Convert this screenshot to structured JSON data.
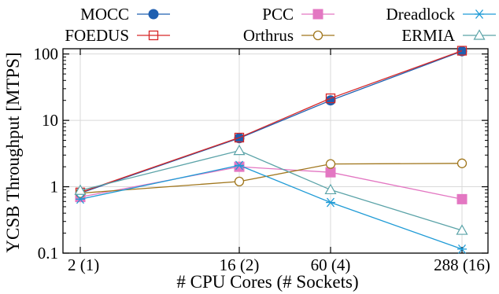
{
  "chart_data": {
    "type": "line",
    "xlabel": "# CPU Cores (# Sockets)",
    "ylabel": "YCSB Throughput [MTPS]",
    "yscale": "log",
    "ylim": [
      0.1,
      120
    ],
    "categories": [
      "2 (1)",
      "16 (2)",
      "60 (4)",
      "288 (16)"
    ],
    "x": [
      2,
      16,
      60,
      288
    ],
    "y_ticks": [
      "0.1",
      "1",
      "10",
      "100"
    ],
    "legend_position": "top",
    "series": [
      {
        "name": "MOCC",
        "color": "#1f5fb0",
        "marker": "filled-circle",
        "values": [
          0.8,
          5.4,
          20,
          110
        ]
      },
      {
        "name": "FOEDUS",
        "color": "#d62728",
        "marker": "open-square",
        "values": [
          0.82,
          5.5,
          21.5,
          112
        ]
      },
      {
        "name": "PCC",
        "color": "#e377c2",
        "marker": "filled-square",
        "values": [
          0.7,
          2.0,
          1.65,
          0.65
        ]
      },
      {
        "name": "Orthrus",
        "color": "#a0761c",
        "marker": "open-circle",
        "values": [
          0.8,
          1.2,
          2.2,
          2.25
        ]
      },
      {
        "name": "Dreadlock",
        "color": "#1f9bd6",
        "marker": "star",
        "values": [
          0.65,
          2.1,
          0.58,
          0.115
        ]
      },
      {
        "name": "ERMIA",
        "color": "#5ba3a8",
        "marker": "open-triangle",
        "values": [
          0.88,
          3.5,
          0.9,
          0.22
        ]
      }
    ]
  }
}
